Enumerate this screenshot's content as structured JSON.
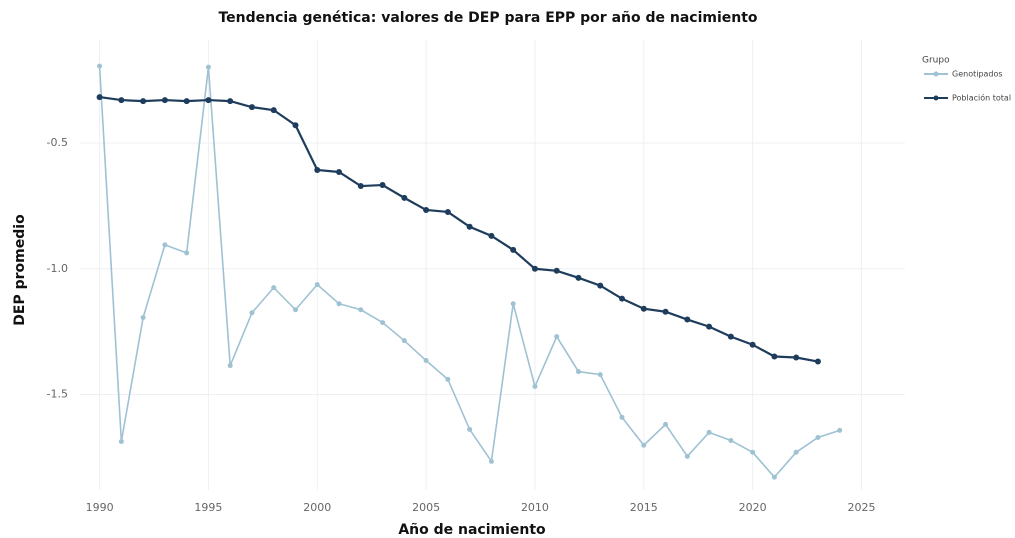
{
  "chart_data": {
    "type": "line",
    "title": "Tendencia genética: valores de DEP para EPP por año de nacimiento",
    "x_label": "Año de nacimiento",
    "y_label": "DEP promedio",
    "legend_title": "Grupo",
    "legend_position": "top-right",
    "grid": true,
    "x": [
      1990,
      1991,
      1992,
      1993,
      1994,
      1995,
      1996,
      1997,
      1998,
      1999,
      2000,
      2001,
      2002,
      2003,
      2004,
      2005,
      2006,
      2007,
      2008,
      2009,
      2010,
      2011,
      2012,
      2013,
      2014,
      2015,
      2016,
      2017,
      2018,
      2019,
      2020,
      2021,
      2022,
      2023,
      2024
    ],
    "series": [
      {
        "name": "Genotipados",
        "color": "#9fc2d3",
        "values": [
          -0.194,
          -1.687,
          -1.194,
          -0.905,
          -0.937,
          -0.198,
          -1.385,
          -1.175,
          -1.075,
          -1.163,
          -1.063,
          -1.139,
          -1.163,
          -1.214,
          -1.286,
          -1.365,
          -1.44,
          -1.639,
          -1.766,
          -1.139,
          -1.468,
          -1.27,
          -1.409,
          -1.421,
          -1.591,
          -1.702,
          -1.619,
          -1.746,
          -1.651,
          -1.683,
          -1.73,
          -1.829,
          -1.73,
          -1.671,
          -1.643
        ]
      },
      {
        "name": "Población total",
        "color": "#1e3d5c",
        "values": [
          -0.317,
          -0.329,
          -0.333,
          -0.329,
          -0.333,
          -0.329,
          -0.333,
          -0.357,
          -0.369,
          -0.429,
          -0.607,
          -0.615,
          -0.671,
          -0.667,
          -0.718,
          -0.766,
          -0.774,
          -0.833,
          -0.869,
          -0.925,
          -1.0,
          -1.008,
          -1.036,
          -1.067,
          -1.119,
          -1.159,
          -1.171,
          -1.202,
          -1.23,
          -1.27,
          -1.302,
          -1.349,
          -1.353,
          -1.369,
          null
        ]
      }
    ],
    "xlim": [
      1989.1,
      2027
    ],
    "xticks": [
      1990,
      1995,
      2000,
      2005,
      2010,
      2015,
      2020,
      2025
    ],
    "ylim": [
      -1.88,
      -0.09
    ],
    "yticks": [
      -0.5,
      {
        "value": -1,
        "label": "-1.0"
      },
      -1.5
    ]
  }
}
